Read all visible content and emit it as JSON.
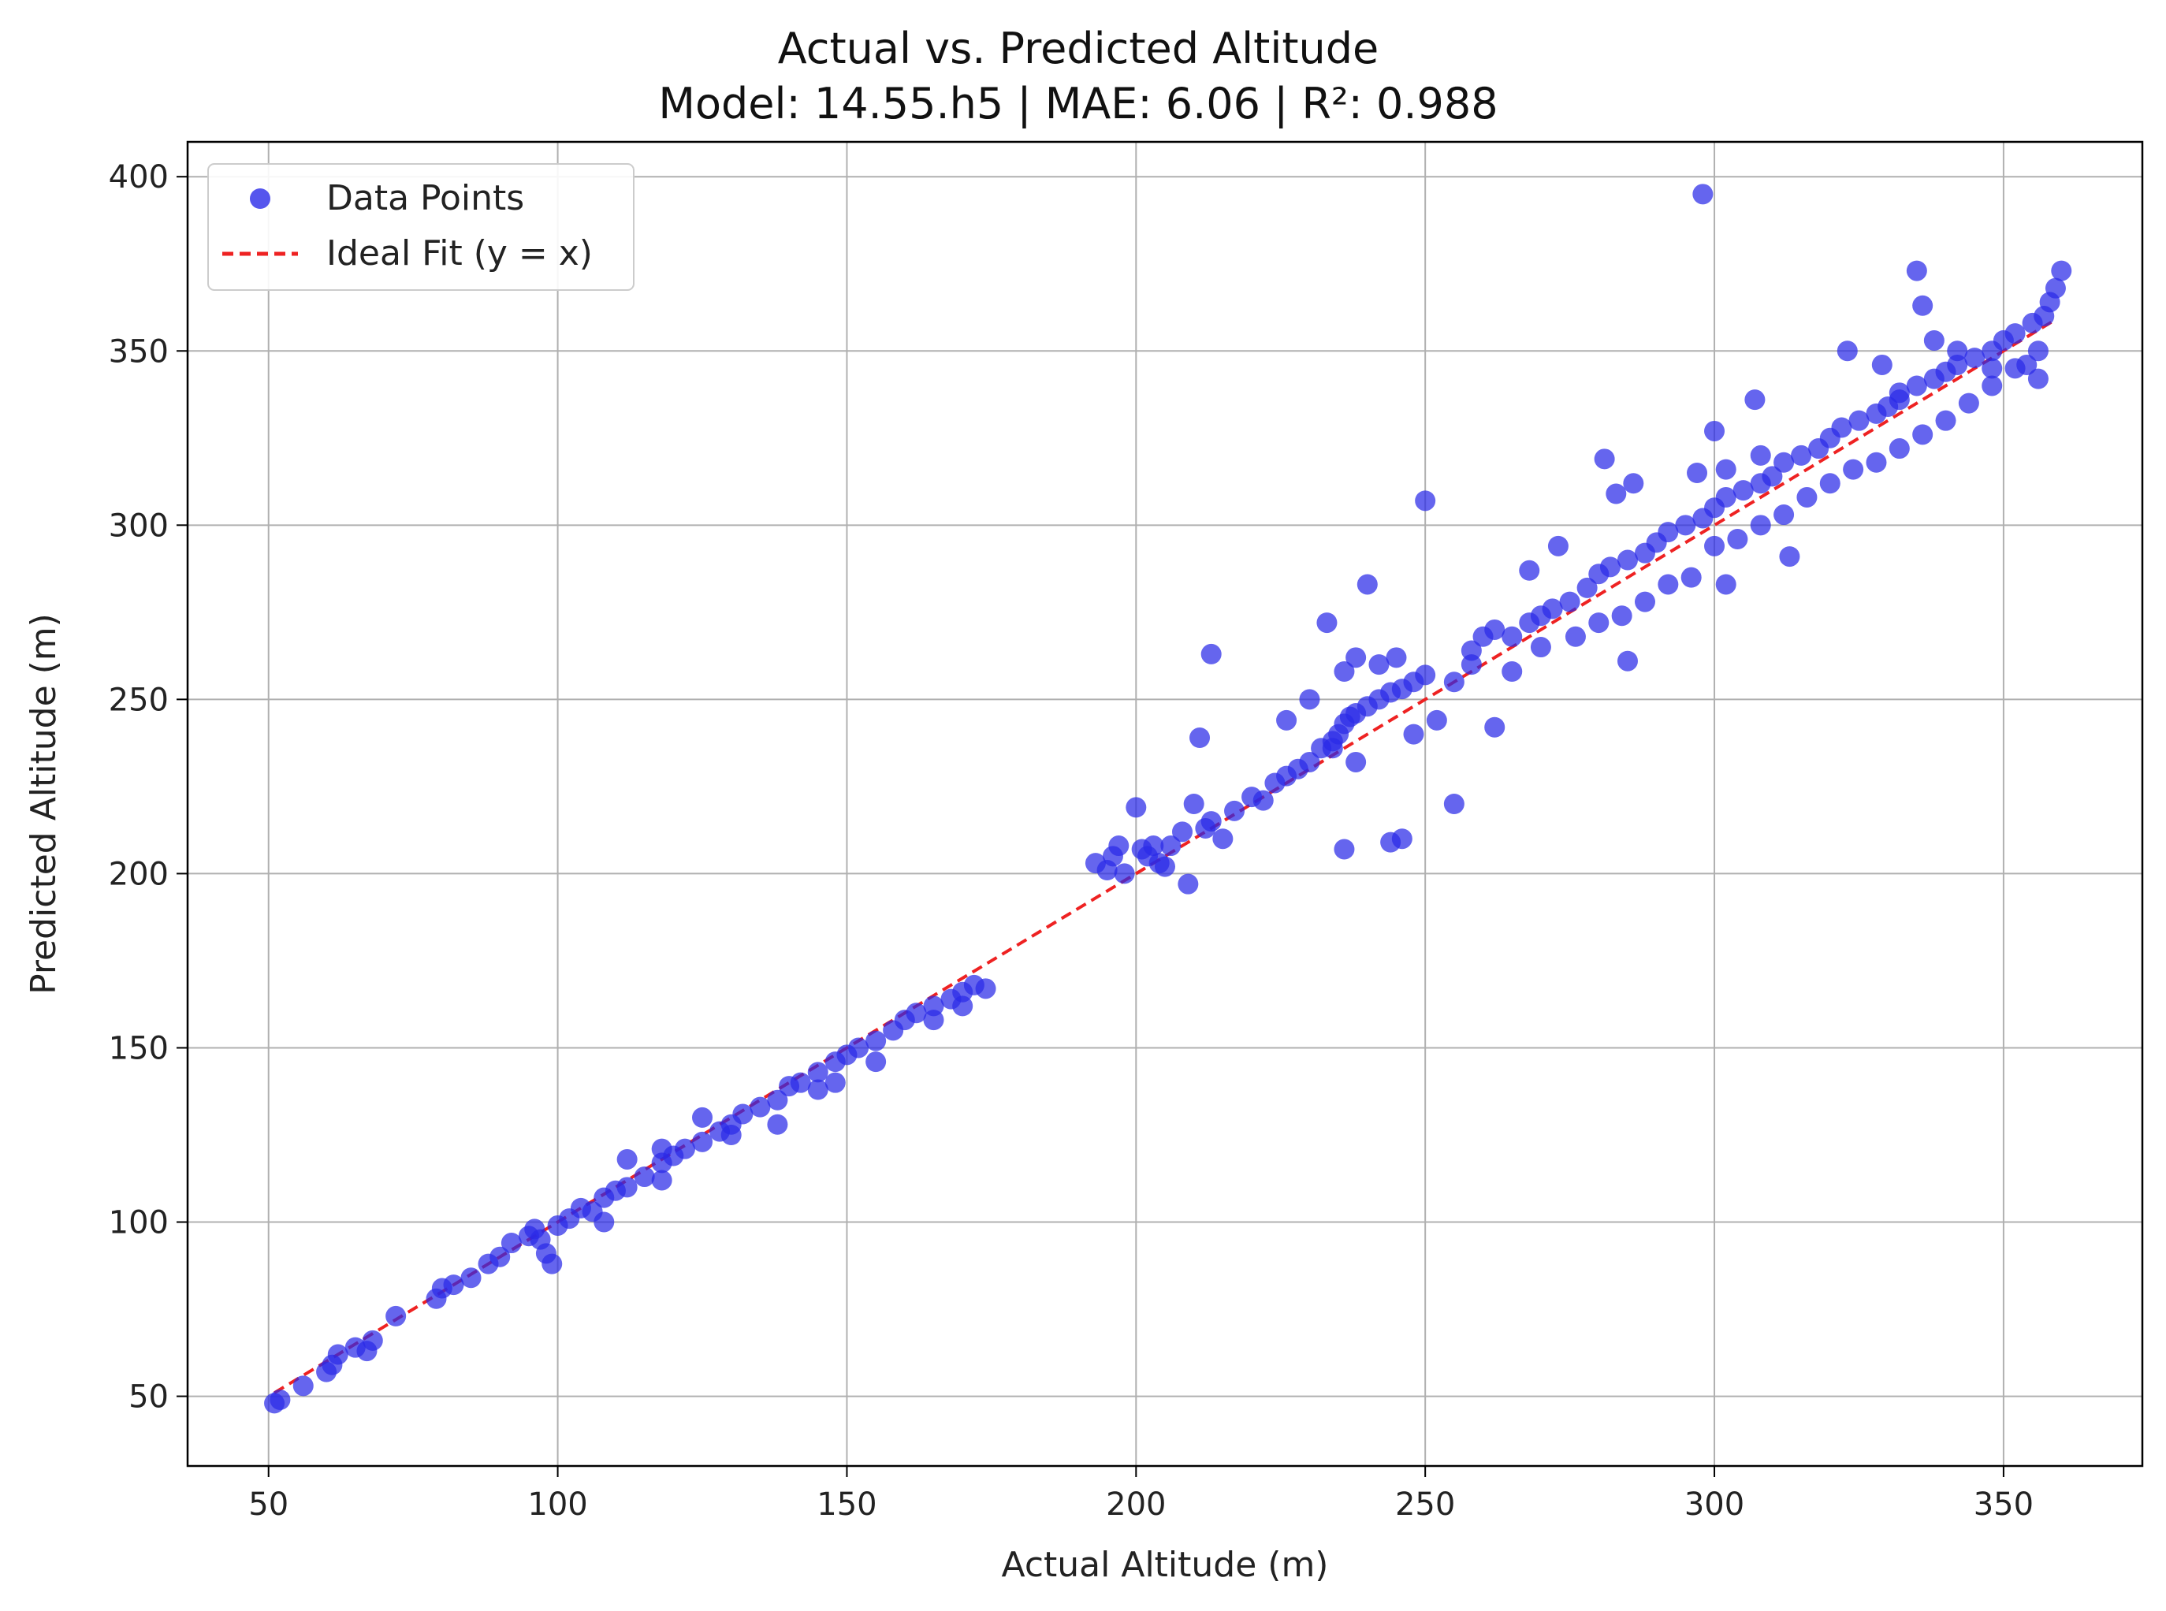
{
  "chart_data": {
    "type": "scatter",
    "title": "Actual vs. Predicted Altitude",
    "subtitle": "Model: 14.55.h5 | MAE: 6.06 | R²: 0.988",
    "xlabel": "Actual Altitude (m)",
    "ylabel": "Predicted Altitude (m)",
    "xlim": [
      36,
      374
    ],
    "ylim": [
      30,
      410
    ],
    "xticks": [
      50,
      100,
      150,
      200,
      250,
      300,
      350
    ],
    "yticks": [
      50,
      100,
      150,
      200,
      250,
      300,
      350,
      400
    ],
    "grid": true,
    "legend_position": "top-left",
    "colors": {
      "points": "#2a2ae8",
      "ideal_line": "#ee2222",
      "grid": "#b0b0b0",
      "axes": "#000000"
    },
    "series": [
      {
        "name": "Data Points",
        "kind": "scatter",
        "points": [
          [
            51,
            48
          ],
          [
            52,
            49
          ],
          [
            56,
            53
          ],
          [
            60,
            57
          ],
          [
            61,
            59
          ],
          [
            62,
            62
          ],
          [
            65,
            64
          ],
          [
            67,
            63
          ],
          [
            68,
            66
          ],
          [
            72,
            73
          ],
          [
            79,
            78
          ],
          [
            80,
            81
          ],
          [
            82,
            82
          ],
          [
            85,
            84
          ],
          [
            88,
            88
          ],
          [
            90,
            90
          ],
          [
            92,
            94
          ],
          [
            95,
            96
          ],
          [
            96,
            98
          ],
          [
            97,
            95
          ],
          [
            98,
            91
          ],
          [
            99,
            88
          ],
          [
            100,
            99
          ],
          [
            102,
            101
          ],
          [
            104,
            104
          ],
          [
            106,
            103
          ],
          [
            108,
            107
          ],
          [
            110,
            109
          ],
          [
            112,
            110
          ],
          [
            115,
            113
          ],
          [
            118,
            117
          ],
          [
            120,
            119
          ],
          [
            122,
            121
          ],
          [
            125,
            123
          ],
          [
            128,
            126
          ],
          [
            130,
            128
          ],
          [
            132,
            131
          ],
          [
            135,
            133
          ],
          [
            138,
            135
          ],
          [
            140,
            139
          ],
          [
            142,
            140
          ],
          [
            145,
            143
          ],
          [
            148,
            146
          ],
          [
            150,
            148
          ],
          [
            152,
            150
          ],
          [
            155,
            152
          ],
          [
            158,
            155
          ],
          [
            160,
            158
          ],
          [
            162,
            160
          ],
          [
            165,
            162
          ],
          [
            168,
            164
          ],
          [
            170,
            166
          ],
          [
            172,
            168
          ],
          [
            174,
            167
          ],
          [
            112,
            118
          ],
          [
            118,
            121
          ],
          [
            125,
            130
          ],
          [
            108,
            100
          ],
          [
            130,
            125
          ],
          [
            145,
            138
          ],
          [
            155,
            146
          ],
          [
            165,
            158
          ],
          [
            170,
            162
          ],
          [
            118,
            112
          ],
          [
            138,
            128
          ],
          [
            148,
            140
          ],
          [
            193,
            203
          ],
          [
            195,
            201
          ],
          [
            196,
            205
          ],
          [
            197,
            208
          ],
          [
            198,
            200
          ],
          [
            200,
            219
          ],
          [
            201,
            207
          ],
          [
            202,
            205
          ],
          [
            203,
            208
          ],
          [
            204,
            203
          ],
          [
            205,
            202
          ],
          [
            206,
            208
          ],
          [
            208,
            212
          ],
          [
            209,
            197
          ],
          [
            210,
            220
          ],
          [
            211,
            239
          ],
          [
            212,
            213
          ],
          [
            213,
            215
          ],
          [
            215,
            210
          ],
          [
            217,
            218
          ],
          [
            220,
            222
          ],
          [
            222,
            221
          ],
          [
            224,
            226
          ],
          [
            226,
            228
          ],
          [
            228,
            230
          ],
          [
            230,
            232
          ],
          [
            232,
            236
          ],
          [
            234,
            238
          ],
          [
            235,
            240
          ],
          [
            236,
            243
          ],
          [
            237,
            245
          ],
          [
            238,
            246
          ],
          [
            240,
            248
          ],
          [
            242,
            250
          ],
          [
            244,
            252
          ],
          [
            246,
            253
          ],
          [
            248,
            255
          ],
          [
            250,
            257
          ],
          [
            213,
            263
          ],
          [
            236,
            207
          ],
          [
            244,
            209
          ],
          [
            246,
            210
          ],
          [
            255,
            220
          ],
          [
            233,
            272
          ],
          [
            240,
            283
          ],
          [
            250,
            307
          ],
          [
            236,
            258
          ],
          [
            238,
            262
          ],
          [
            242,
            260
          ],
          [
            245,
            262
          ],
          [
            230,
            250
          ],
          [
            226,
            244
          ],
          [
            234,
            236
          ],
          [
            238,
            232
          ],
          [
            248,
            240
          ],
          [
            252,
            244
          ],
          [
            262,
            242
          ],
          [
            258,
            260
          ],
          [
            255,
            255
          ],
          [
            258,
            264
          ],
          [
            260,
            268
          ],
          [
            262,
            270
          ],
          [
            265,
            268
          ],
          [
            268,
            272
          ],
          [
            270,
            274
          ],
          [
            272,
            276
          ],
          [
            275,
            278
          ],
          [
            278,
            282
          ],
          [
            280,
            286
          ],
          [
            282,
            288
          ],
          [
            285,
            290
          ],
          [
            288,
            292
          ],
          [
            290,
            295
          ],
          [
            292,
            298
          ],
          [
            295,
            300
          ],
          [
            298,
            302
          ],
          [
            300,
            305
          ],
          [
            302,
            308
          ],
          [
            305,
            310
          ],
          [
            308,
            312
          ],
          [
            310,
            314
          ],
          [
            312,
            318
          ],
          [
            315,
            320
          ],
          [
            318,
            322
          ],
          [
            320,
            325
          ],
          [
            322,
            328
          ],
          [
            325,
            330
          ],
          [
            328,
            332
          ],
          [
            330,
            334
          ],
          [
            332,
            336
          ],
          [
            335,
            340
          ],
          [
            338,
            342
          ],
          [
            340,
            344
          ],
          [
            342,
            346
          ],
          [
            345,
            348
          ],
          [
            348,
            350
          ],
          [
            350,
            353
          ],
          [
            352,
            355
          ],
          [
            355,
            358
          ],
          [
            357,
            360
          ],
          [
            358,
            364
          ],
          [
            359,
            368
          ],
          [
            265,
            258
          ],
          [
            270,
            265
          ],
          [
            276,
            268
          ],
          [
            280,
            272
          ],
          [
            284,
            274
          ],
          [
            288,
            278
          ],
          [
            292,
            283
          ],
          [
            296,
            285
          ],
          [
            300,
            294
          ],
          [
            304,
            296
          ],
          [
            308,
            300
          ],
          [
            312,
            303
          ],
          [
            316,
            308
          ],
          [
            320,
            312
          ],
          [
            324,
            316
          ],
          [
            328,
            318
          ],
          [
            332,
            322
          ],
          [
            336,
            326
          ],
          [
            340,
            330
          ],
          [
            344,
            335
          ],
          [
            348,
            340
          ],
          [
            352,
            345
          ],
          [
            356,
            342
          ],
          [
            285,
            261
          ],
          [
            302,
            283
          ],
          [
            313,
            291
          ],
          [
            281,
            319
          ],
          [
            283,
            309
          ],
          [
            297,
            315
          ],
          [
            302,
            316
          ],
          [
            308,
            320
          ],
          [
            300,
            327
          ],
          [
            307,
            336
          ],
          [
            323,
            350
          ],
          [
            329,
            346
          ],
          [
            335,
            373
          ],
          [
            336,
            363
          ],
          [
            338,
            353
          ],
          [
            332,
            338
          ],
          [
            342,
            350
          ],
          [
            348,
            345
          ],
          [
            354,
            346
          ],
          [
            356,
            350
          ],
          [
            360,
            373
          ],
          [
            298,
            395
          ],
          [
            268,
            287
          ],
          [
            273,
            294
          ],
          [
            286,
            312
          ]
        ]
      },
      {
        "name": "Ideal Fit (y = x)",
        "kind": "line",
        "points": [
          [
            51,
            51
          ],
          [
            359,
            359
          ]
        ]
      }
    ]
  }
}
